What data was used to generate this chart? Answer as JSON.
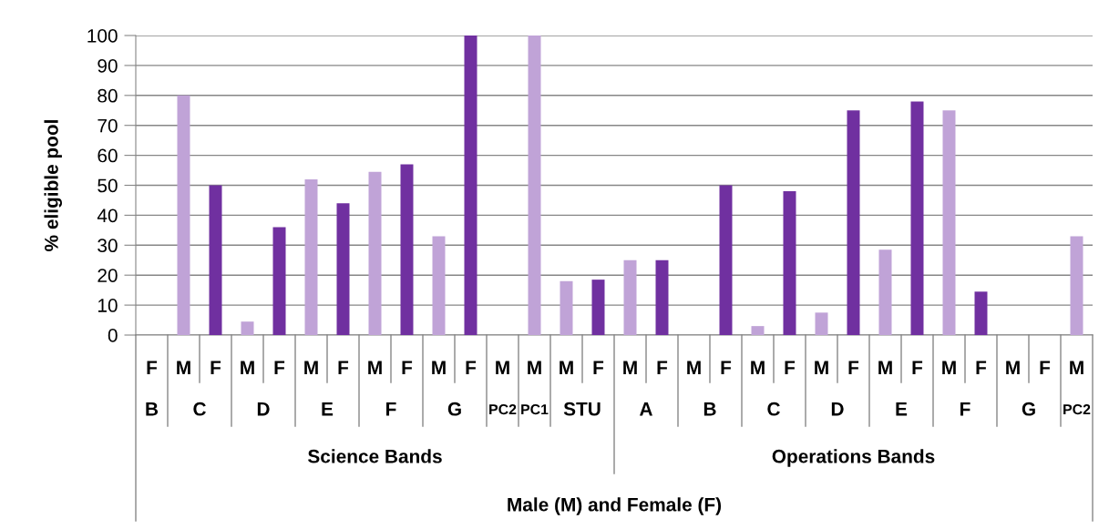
{
  "chart_data": {
    "type": "bar",
    "ylabel": "% eligible pool",
    "categories": [
      [
        "F",
        "B",
        "Science Bands",
        "Male (M) and Female (F)"
      ],
      [
        "M",
        "C",
        null,
        null
      ],
      [
        "F",
        null,
        null,
        null
      ],
      [
        "M",
        "D",
        null,
        null
      ],
      [
        "F",
        null,
        null,
        null
      ],
      [
        "M",
        "E",
        null,
        null
      ],
      [
        "F",
        null,
        null,
        null
      ],
      [
        "M",
        "F",
        null,
        null
      ],
      [
        "F",
        null,
        null,
        null
      ],
      [
        "M",
        "G",
        null,
        null
      ],
      [
        "F",
        null,
        null,
        null
      ],
      [
        "M",
        "PC2",
        null,
        null
      ],
      [
        "M",
        "PC1",
        null,
        null
      ],
      [
        "M",
        "STU",
        null,
        null
      ],
      [
        "F",
        null,
        null,
        null
      ],
      [
        "M",
        "A",
        "Operations Bands",
        null
      ],
      [
        "F",
        null,
        null,
        null
      ],
      [
        "M",
        "B",
        null,
        null
      ],
      [
        "F",
        null,
        null,
        null
      ],
      [
        "M",
        "C",
        null,
        null
      ],
      [
        "F",
        null,
        null,
        null
      ],
      [
        "M",
        "D",
        null,
        null
      ],
      [
        "F",
        null,
        null,
        null
      ],
      [
        "M",
        "E",
        null,
        null
      ],
      [
        "F",
        null,
        null,
        null
      ],
      [
        "M",
        "F",
        null,
        null
      ],
      [
        "F",
        null,
        null,
        null
      ],
      [
        "M",
        "G",
        null,
        null
      ],
      [
        "F",
        null,
        null,
        null
      ],
      [
        "M",
        "PC2",
        null,
        null
      ]
    ],
    "values": [
      null,
      80,
      50,
      4.5,
      36,
      52,
      44,
      54.5,
      57,
      33,
      100,
      null,
      100,
      18,
      18.5,
      25,
      25,
      null,
      50,
      3,
      48,
      7.5,
      75,
      28.5,
      78,
      75,
      14.5,
      null,
      null,
      33
    ],
    "colors": [
      "#7030a0",
      "#c0a3d7",
      "#7030a0",
      "#c0a3d7",
      "#7030a0",
      "#c0a3d7",
      "#7030a0",
      "#c0a3d7",
      "#7030a0",
      "#c0a3d7",
      "#7030a0",
      "#c0a3d7",
      "#c0a3d7",
      "#c0a3d7",
      "#7030a0",
      "#c0a3d7",
      "#7030a0",
      "#c0a3d7",
      "#7030a0",
      "#c0a3d7",
      "#7030a0",
      "#c0a3d7",
      "#7030a0",
      "#c0a3d7",
      "#7030a0",
      "#c0a3d7",
      "#7030a0",
      "#c0a3d7",
      "#7030a0",
      "#c0a3d7"
    ],
    "ylim": [
      0,
      100
    ],
    "yticks": [
      0,
      10,
      20,
      30,
      40,
      50,
      60,
      70,
      80,
      90,
      100
    ],
    "grid": "y"
  }
}
